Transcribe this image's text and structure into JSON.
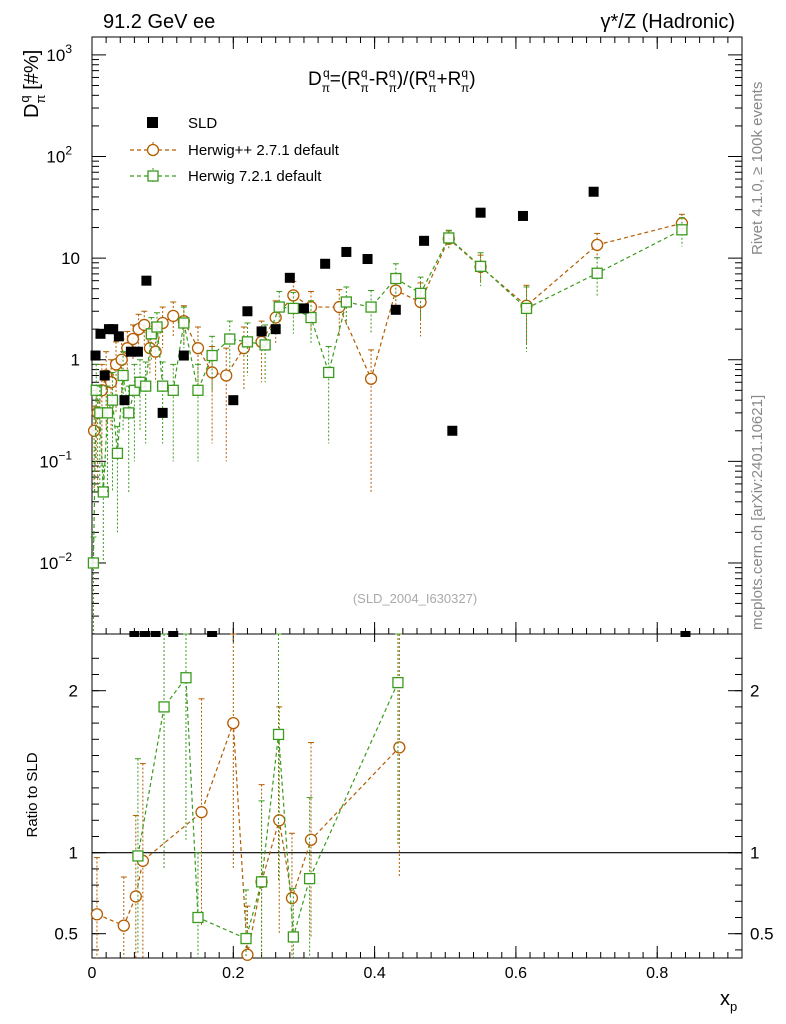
{
  "header": {
    "left": "91.2 GeV ee",
    "right": "γ*/Z (Hadronic)"
  },
  "side_labels": {
    "rivet": "Rivet 4.1.0, ≥ 100k events",
    "mcplots": "mcplots.cern.ch [arXiv:2401.10621]"
  },
  "analysis_id": "(SLD_2004_I630327)",
  "chart_data": {
    "type": "scatter",
    "title": "D_π^q=(R_π-^q - R_π+^q)/(R_π-^q + R_π+^q)",
    "title_parts": {
      "d": "D",
      "sub": "π",
      "sup": "q",
      "eq": "=(R",
      "sup2": "q",
      "sub2": "π",
      "dash": "-R",
      "sup3": "q",
      "sub3": "π",
      "rest": ")/(R",
      "plus": "+R",
      "close": ")"
    },
    "ylabel_main": {
      "base": "D",
      "sup": "q",
      "sub": "π",
      "unit": " [#%]"
    },
    "ylabel_ratio": "Ratio to SLD",
    "xlabel": {
      "base": "x",
      "sub": "p"
    },
    "xlim": [
      0,
      0.92
    ],
    "ylim_main": [
      0.002,
      1500
    ],
    "ylim_ratio": [
      0.35,
      2.35
    ],
    "xticks": [
      "0",
      "0.2",
      "0.4",
      "0.6",
      "0.8"
    ],
    "xtick_values": [
      0,
      0.2,
      0.4,
      0.6,
      0.8
    ],
    "yticks_main": [
      {
        "value": 0.01,
        "base": "10",
        "exp": "−2"
      },
      {
        "value": 0.1,
        "base": "10",
        "exp": "−1"
      },
      {
        "value": 1,
        "base": "1",
        "exp": ""
      },
      {
        "value": 10,
        "base": "10",
        "exp": ""
      },
      {
        "value": 100,
        "base": "10",
        "exp": "2"
      },
      {
        "value": 1000,
        "base": "10",
        "exp": "3"
      }
    ],
    "yticks_ratio": [
      {
        "value": 0.5,
        "label": "0.5"
      },
      {
        "value": 1,
        "label": "1"
      },
      {
        "value": 2,
        "label": "2"
      }
    ],
    "legend": [
      {
        "name": "SLD",
        "style": "data"
      },
      {
        "name": "Herwig++ 2.7.1 default",
        "style": "circle"
      },
      {
        "name": "Herwig 7.2.1 default",
        "style": "square"
      }
    ],
    "series": [
      {
        "name": "SLD",
        "color": "#000000",
        "x": [
          0.005,
          0.012,
          0.018,
          0.024,
          0.03,
          0.038,
          0.046,
          0.055,
          0.065,
          0.077,
          0.1,
          0.13,
          0.2,
          0.22,
          0.24,
          0.26,
          0.28,
          0.3,
          0.33,
          0.36,
          0.39,
          0.43,
          0.47,
          0.51,
          0.55,
          0.61,
          0.71
        ],
        "y": [
          1.1,
          1.8,
          0.7,
          2.0,
          2.0,
          1.7,
          0.4,
          1.2,
          1.2,
          6.0,
          0.3,
          1.1,
          0.4,
          3.0,
          1.9,
          2.0,
          6.4,
          3.2,
          8.8,
          11.5,
          9.8,
          3.1,
          14.8,
          0.2,
          28.0,
          26.0,
          45.0
        ]
      },
      {
        "name": "Herwig++ 2.7.1 default",
        "color": "#b35c00",
        "x": [
          0.003,
          0.008,
          0.014,
          0.02,
          0.027,
          0.034,
          0.042,
          0.05,
          0.058,
          0.066,
          0.074,
          0.082,
          0.09,
          0.1,
          0.115,
          0.13,
          0.15,
          0.17,
          0.19,
          0.215,
          0.24,
          0.26,
          0.285,
          0.31,
          0.35,
          0.395,
          0.43,
          0.465,
          0.505,
          0.55,
          0.615,
          0.715,
          0.835
        ],
        "y": [
          0.2,
          0.3,
          0.5,
          0.7,
          0.6,
          0.9,
          1.0,
          1.3,
          1.6,
          2.0,
          2.2,
          1.3,
          1.2,
          2.3,
          2.7,
          2.4,
          1.3,
          0.75,
          0.7,
          1.3,
          1.5,
          2.6,
          4.3,
          3.3,
          3.3,
          0.65,
          4.8,
          3.7,
          15.5,
          8.2,
          3.4,
          13.5,
          22.0
        ],
        "yerr": [
          0.15,
          0.25,
          0.4,
          0.5,
          0.4,
          0.6,
          0.6,
          0.6,
          0.6,
          0.8,
          0.8,
          0.6,
          0.6,
          1.0,
          1.0,
          1.0,
          0.8,
          0.6,
          0.6,
          0.8,
          0.9,
          1.2,
          1.6,
          1.4,
          1.6,
          0.6,
          2.0,
          2.0,
          3.0,
          2.5,
          2.0,
          4.0,
          5.0
        ],
        "ratio_x": [
          0.007,
          0.045,
          0.062,
          0.072,
          0.155,
          0.2,
          0.22,
          0.24,
          0.265,
          0.283,
          0.31,
          0.435
        ],
        "ratio_y": [
          0.62,
          0.55,
          0.73,
          0.95,
          1.25,
          1.8,
          0.37,
          0.82,
          1.2,
          0.72,
          1.08,
          1.65
        ],
        "ratio_err": [
          0.35,
          0.3,
          0.5,
          0.6,
          0.7,
          0.9,
          0.3,
          0.6,
          0.7,
          0.4,
          0.6,
          0.8
        ]
      },
      {
        "name": "Herwig 7.2.1 default",
        "color": "#3a9b1e",
        "x": [
          0.002,
          0.006,
          0.011,
          0.016,
          0.022,
          0.029,
          0.036,
          0.044,
          0.052,
          0.06,
          0.068,
          0.076,
          0.084,
          0.092,
          0.1,
          0.115,
          0.13,
          0.15,
          0.17,
          0.195,
          0.22,
          0.245,
          0.265,
          0.285,
          0.31,
          0.335,
          0.36,
          0.395,
          0.43,
          0.465,
          0.505,
          0.55,
          0.615,
          0.715,
          0.835
        ],
        "y": [
          0.01,
          0.5,
          0.3,
          0.05,
          0.3,
          0.4,
          0.12,
          0.7,
          0.3,
          0.5,
          0.6,
          0.55,
          1.8,
          2.1,
          0.55,
          0.5,
          2.3,
          0.5,
          1.1,
          1.6,
          1.5,
          1.4,
          3.3,
          3.2,
          2.6,
          0.75,
          3.7,
          3.3,
          6.3,
          4.5,
          15.8,
          8.3,
          3.2,
          7.1,
          19.0
        ],
        "yerr": [
          0.008,
          0.4,
          0.25,
          0.04,
          0.25,
          0.35,
          0.1,
          0.5,
          0.25,
          0.4,
          0.4,
          0.4,
          0.8,
          0.8,
          0.4,
          0.4,
          1.0,
          0.4,
          0.6,
          0.8,
          0.8,
          0.8,
          1.4,
          1.4,
          1.2,
          0.6,
          1.5,
          1.5,
          2.5,
          2.0,
          3.0,
          3.0,
          2.0,
          3.0,
          6.0
        ],
        "ratio_x": [
          0.065,
          0.102,
          0.133,
          0.15,
          0.218,
          0.24,
          0.264,
          0.285,
          0.308,
          0.433
        ],
        "ratio_y": [
          0.98,
          1.9,
          2.08,
          0.6,
          0.47,
          0.82,
          1.73,
          0.48,
          0.84,
          2.05
        ],
        "ratio_err": [
          0.6,
          1.0,
          1.0,
          0.4,
          0.3,
          0.5,
          0.9,
          0.3,
          0.5,
          1.0
        ]
      }
    ]
  }
}
